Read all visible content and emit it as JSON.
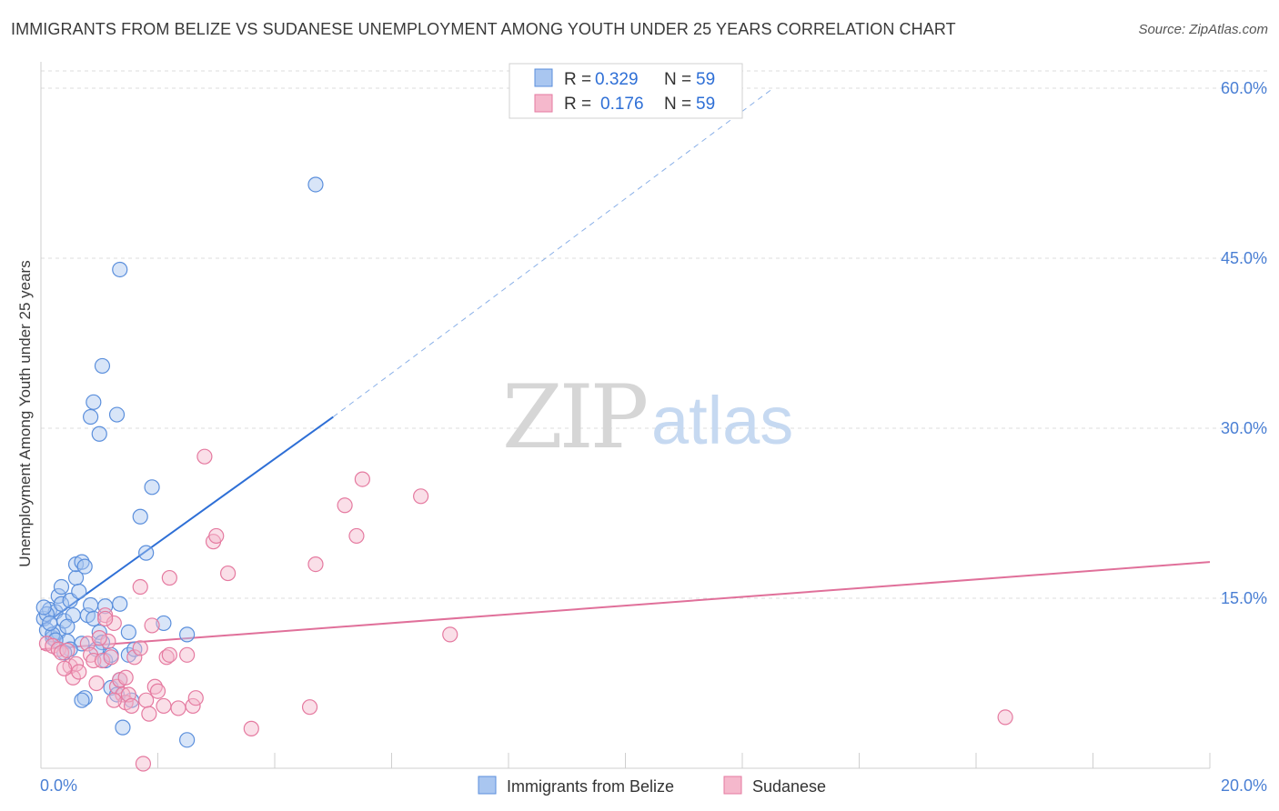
{
  "title": "IMMIGRANTS FROM BELIZE VS SUDANESE UNEMPLOYMENT AMONG YOUTH UNDER 25 YEARS CORRELATION CHART",
  "source": "Source: ZipAtlas.com",
  "watermark": {
    "zip": "ZIP",
    "atlas": "atlas"
  },
  "colors": {
    "blue": "#5b8fdc",
    "blue_fill": "#a9c6f0",
    "pink": "#e57aa0",
    "pink_fill": "#f5b8cc",
    "blue_line": "#2e6fd6",
    "pink_line": "#e0709a",
    "accent_text": "#2e6fd6"
  },
  "legend_top": [
    {
      "r_label": "R =",
      "r_value": "0.329",
      "n_label": "N =",
      "n_value": "59"
    },
    {
      "r_label": "R =",
      "r_value": "0.176",
      "n_label": "N =",
      "n_value": "59"
    }
  ],
  "chart_data": {
    "type": "scatter",
    "title": "IMMIGRANTS FROM BELIZE VS SUDANESE UNEMPLOYMENT AMONG YOUTH UNDER 25 YEARS CORRELATION CHART",
    "xlabel": "",
    "ylabel": "Unemployment Among Youth under 25 years",
    "xlim": [
      0,
      20
    ],
    "ylim": [
      0,
      60
    ],
    "x_tick_labels": [
      "0.0%",
      "20.0%"
    ],
    "y_ticks": [
      15,
      30,
      45,
      60
    ],
    "y_tick_labels": [
      "15.0%",
      "30.0%",
      "45.0%",
      "60.0%"
    ],
    "grid": true,
    "series": [
      {
        "name": "Immigrants from Belize",
        "color": "#5b8fdc",
        "r": 0.329,
        "n": 59,
        "trend": {
          "x": [
            0.0,
            5.0
          ],
          "y": [
            12.5,
            31.0
          ],
          "dashed_to": [
            12.5,
            60.0
          ]
        },
        "points": [
          [
            0.05,
            13.2
          ],
          [
            0.1,
            12.2
          ],
          [
            0.15,
            14.0
          ],
          [
            0.2,
            11.5
          ],
          [
            0.25,
            13.8
          ],
          [
            0.3,
            15.2
          ],
          [
            0.35,
            14.5
          ],
          [
            0.3,
            12.0
          ],
          [
            0.4,
            13.0
          ],
          [
            0.45,
            11.2
          ],
          [
            0.5,
            14.8
          ],
          [
            0.55,
            13.5
          ],
          [
            0.6,
            16.8
          ],
          [
            0.6,
            18.0
          ],
          [
            0.7,
            18.2
          ],
          [
            0.75,
            17.8
          ],
          [
            0.65,
            15.6
          ],
          [
            0.8,
            13.5
          ],
          [
            0.85,
            14.4
          ],
          [
            0.9,
            13.2
          ],
          [
            0.7,
            11.0
          ],
          [
            0.5,
            10.5
          ],
          [
            0.4,
            10.2
          ],
          [
            0.2,
            11.8
          ],
          [
            0.1,
            13.6
          ],
          [
            0.05,
            14.2
          ],
          [
            0.35,
            16.0
          ],
          [
            0.15,
            12.8
          ],
          [
            0.25,
            11.3
          ],
          [
            0.45,
            12.5
          ],
          [
            1.0,
            12.0
          ],
          [
            1.05,
            11.1
          ],
          [
            1.1,
            9.5
          ],
          [
            0.95,
            10.5
          ],
          [
            1.2,
            10.0
          ],
          [
            1.5,
            10.0
          ],
          [
            1.6,
            10.5
          ],
          [
            1.35,
            7.8
          ],
          [
            1.2,
            7.1
          ],
          [
            0.75,
            6.2
          ],
          [
            0.7,
            6.0
          ],
          [
            1.3,
            6.5
          ],
          [
            1.55,
            6.0
          ],
          [
            1.4,
            3.6
          ],
          [
            2.5,
            2.5
          ],
          [
            2.1,
            12.8
          ],
          [
            1.5,
            12.0
          ],
          [
            2.5,
            11.8
          ],
          [
            1.35,
            14.5
          ],
          [
            1.1,
            14.3
          ],
          [
            1.8,
            19.0
          ],
          [
            1.7,
            22.2
          ],
          [
            1.9,
            24.8
          ],
          [
            0.85,
            31.0
          ],
          [
            1.0,
            29.5
          ],
          [
            1.05,
            35.5
          ],
          [
            0.9,
            32.3
          ],
          [
            1.3,
            31.2
          ],
          [
            1.35,
            44.0
          ],
          [
            4.7,
            51.5
          ]
        ]
      },
      {
        "name": "Sudanese",
        "color": "#e57aa0",
        "r": 0.176,
        "n": 59,
        "trend": {
          "x": [
            0.0,
            20.0
          ],
          "y": [
            10.5,
            18.2
          ]
        },
        "points": [
          [
            0.1,
            11.0
          ],
          [
            0.2,
            10.8
          ],
          [
            0.3,
            10.5
          ],
          [
            0.35,
            10.2
          ],
          [
            0.45,
            10.4
          ],
          [
            0.5,
            9.0
          ],
          [
            0.55,
            8.0
          ],
          [
            0.6,
            9.2
          ],
          [
            0.4,
            8.8
          ],
          [
            0.8,
            11.0
          ],
          [
            0.85,
            10.0
          ],
          [
            0.9,
            9.5
          ],
          [
            0.95,
            7.5
          ],
          [
            1.05,
            9.5
          ],
          [
            1.1,
            13.5
          ],
          [
            1.2,
            9.8
          ],
          [
            1.25,
            12.8
          ],
          [
            1.15,
            11.2
          ],
          [
            1.3,
            7.2
          ],
          [
            1.35,
            7.8
          ],
          [
            1.4,
            6.5
          ],
          [
            1.45,
            5.8
          ],
          [
            1.5,
            6.5
          ],
          [
            1.55,
            5.5
          ],
          [
            1.6,
            9.8
          ],
          [
            1.7,
            10.6
          ],
          [
            1.8,
            6.0
          ],
          [
            1.85,
            4.8
          ],
          [
            1.9,
            12.6
          ],
          [
            1.95,
            7.2
          ],
          [
            2.0,
            6.8
          ],
          [
            2.1,
            5.5
          ],
          [
            2.15,
            9.8
          ],
          [
            2.2,
            10.0
          ],
          [
            2.35,
            5.3
          ],
          [
            2.5,
            10.0
          ],
          [
            2.6,
            5.5
          ],
          [
            2.65,
            6.2
          ],
          [
            2.2,
            16.8
          ],
          [
            1.7,
            16.0
          ],
          [
            2.95,
            20.0
          ],
          [
            3.0,
            20.5
          ],
          [
            3.2,
            17.2
          ],
          [
            2.8,
            27.5
          ],
          [
            3.6,
            3.5
          ],
          [
            4.6,
            5.4
          ],
          [
            4.7,
            18.0
          ],
          [
            5.2,
            23.2
          ],
          [
            5.4,
            20.5
          ],
          [
            5.5,
            25.5
          ],
          [
            6.5,
            24.0
          ],
          [
            7.0,
            11.8
          ],
          [
            16.5,
            4.5
          ],
          [
            1.1,
            13.2
          ],
          [
            1.0,
            11.5
          ],
          [
            0.65,
            8.5
          ],
          [
            1.45,
            8.0
          ],
          [
            1.25,
            6.0
          ],
          [
            1.75,
            0.4
          ]
        ]
      }
    ]
  },
  "bottom_legend": [
    {
      "label": "Immigrants from Belize"
    },
    {
      "label": "Sudanese"
    }
  ]
}
